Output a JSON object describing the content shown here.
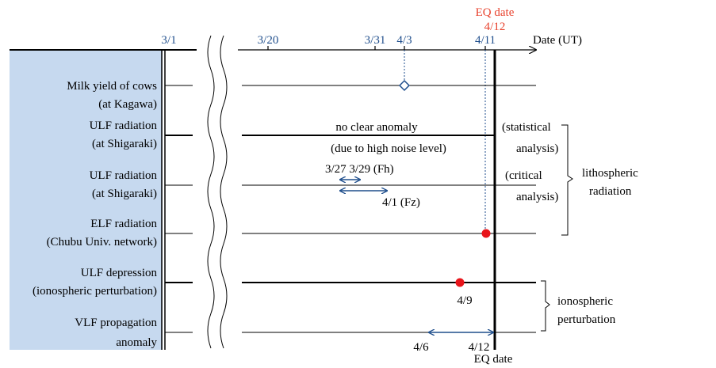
{
  "axis": {
    "date_label": "Date (UT)",
    "ticks": [
      "3/1",
      "3/20",
      "3/31",
      "4/3",
      "4/11"
    ],
    "eq_top_line1": "EQ date",
    "eq_top_line2": "4/12",
    "eq_bottom": "EQ date"
  },
  "rows": [
    {
      "line1": "Milk yield of cows",
      "line2": "(at Kagawa)"
    },
    {
      "line1": "ULF radiation",
      "line2": "(at Shigaraki)"
    },
    {
      "line1": "ULF radiation",
      "line2": "(at Shigaraki)"
    },
    {
      "line1": "ELF radiation",
      "line2": "(Chubu Univ. network)"
    },
    {
      "line1": "ULF depression",
      "line2": "(ionospheric perturbation)"
    },
    {
      "line1": "VLF propagation",
      "line2": "anomaly"
    }
  ],
  "annotations": {
    "no_anomaly_1": "no clear anomaly",
    "no_anomaly_2": "(due to high noise level)",
    "stat_1": "(statistical",
    "stat_2": "analysis)",
    "crit_1": "(critical",
    "crit_2": "analysis)",
    "fh_label": "3/27 3/29 (Fh)",
    "fz_label": "4/1 (Fz)",
    "d49": "4/9",
    "d46": "4/6",
    "d412": "4/12"
  },
  "groups": {
    "litho_1": "lithospheric",
    "litho_2": "radiation",
    "iono_1": "ionospheric",
    "iono_2": "perturbation"
  },
  "colors": {
    "panel": "#c6d9ef",
    "blue": "#1f4e8c",
    "red": "#e8412c",
    "dot": "#e8141a"
  }
}
